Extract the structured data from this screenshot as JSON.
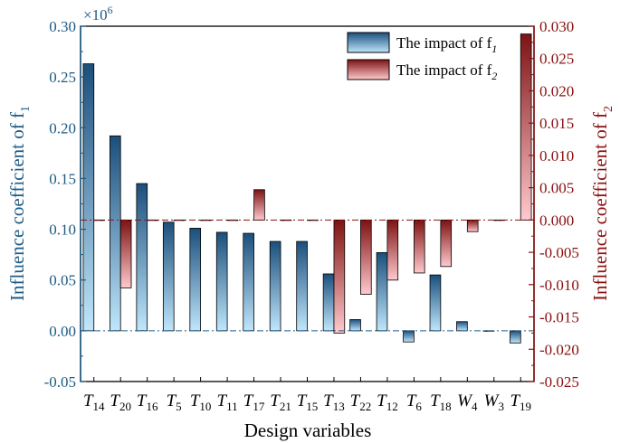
{
  "chart_data": {
    "type": "bar",
    "xlabel": "Design variables",
    "ylabel_left": "Influence coefficient of f",
    "ylabel_left_sub": "1",
    "ylabel_right": "Influence coefficient of f",
    "ylabel_right_sub": "2",
    "left_multiplier": "×10",
    "left_multiplier_exp": "6",
    "categories": [
      {
        "base": "T",
        "sub": "14"
      },
      {
        "base": "T",
        "sub": "20"
      },
      {
        "base": "T",
        "sub": "16"
      },
      {
        "base": "T",
        "sub": "5"
      },
      {
        "base": "T",
        "sub": "10"
      },
      {
        "base": "T",
        "sub": "11"
      },
      {
        "base": "T",
        "sub": "17"
      },
      {
        "base": "T",
        "sub": "21"
      },
      {
        "base": "T",
        "sub": "15"
      },
      {
        "base": "T",
        "sub": "13"
      },
      {
        "base": "T",
        "sub": "22"
      },
      {
        "base": "T",
        "sub": "12"
      },
      {
        "base": "T",
        "sub": "6"
      },
      {
        "base": "T",
        "sub": "18"
      },
      {
        "base": "W",
        "sub": "4"
      },
      {
        "base": "W",
        "sub": "3"
      },
      {
        "base": "T",
        "sub": "19"
      }
    ],
    "series": [
      {
        "name": "The impact of f",
        "name_sub": "1",
        "axis": "left",
        "values": [
          0.263,
          0.192,
          0.145,
          0.107,
          0.101,
          0.097,
          0.096,
          0.088,
          0.088,
          0.056,
          0.011,
          0.077,
          -0.011,
          0.055,
          0.009,
          0.0,
          -0.012
        ]
      },
      {
        "name": "The impact of f",
        "name_sub": "2",
        "axis": "right",
        "values": [
          0.0,
          -0.0105,
          0.0,
          0.0,
          0.0,
          0.0,
          0.0047,
          0.0,
          0.0,
          -0.0175,
          -0.0115,
          -0.0093,
          -0.0082,
          -0.0072,
          -0.0018,
          0.0,
          0.0288
        ]
      }
    ],
    "ylim_left": [
      -0.05,
      0.3
    ],
    "yticks_left": [
      "-0.05",
      "0.00",
      "0.05",
      "0.10",
      "0.15",
      "0.20",
      "0.25",
      "0.30"
    ],
    "ylim_right": [
      -0.025,
      0.03
    ],
    "yticks_right": [
      "-0.025",
      "-0.020",
      "-0.015",
      "-0.010",
      "-0.005",
      "0.000",
      "0.005",
      "0.010",
      "0.015",
      "0.020",
      "0.025",
      "0.030"
    ],
    "legend_position": "top-right",
    "colors": {
      "left_axis": "#1d5b85",
      "right_axis": "#8b1010"
    }
  }
}
